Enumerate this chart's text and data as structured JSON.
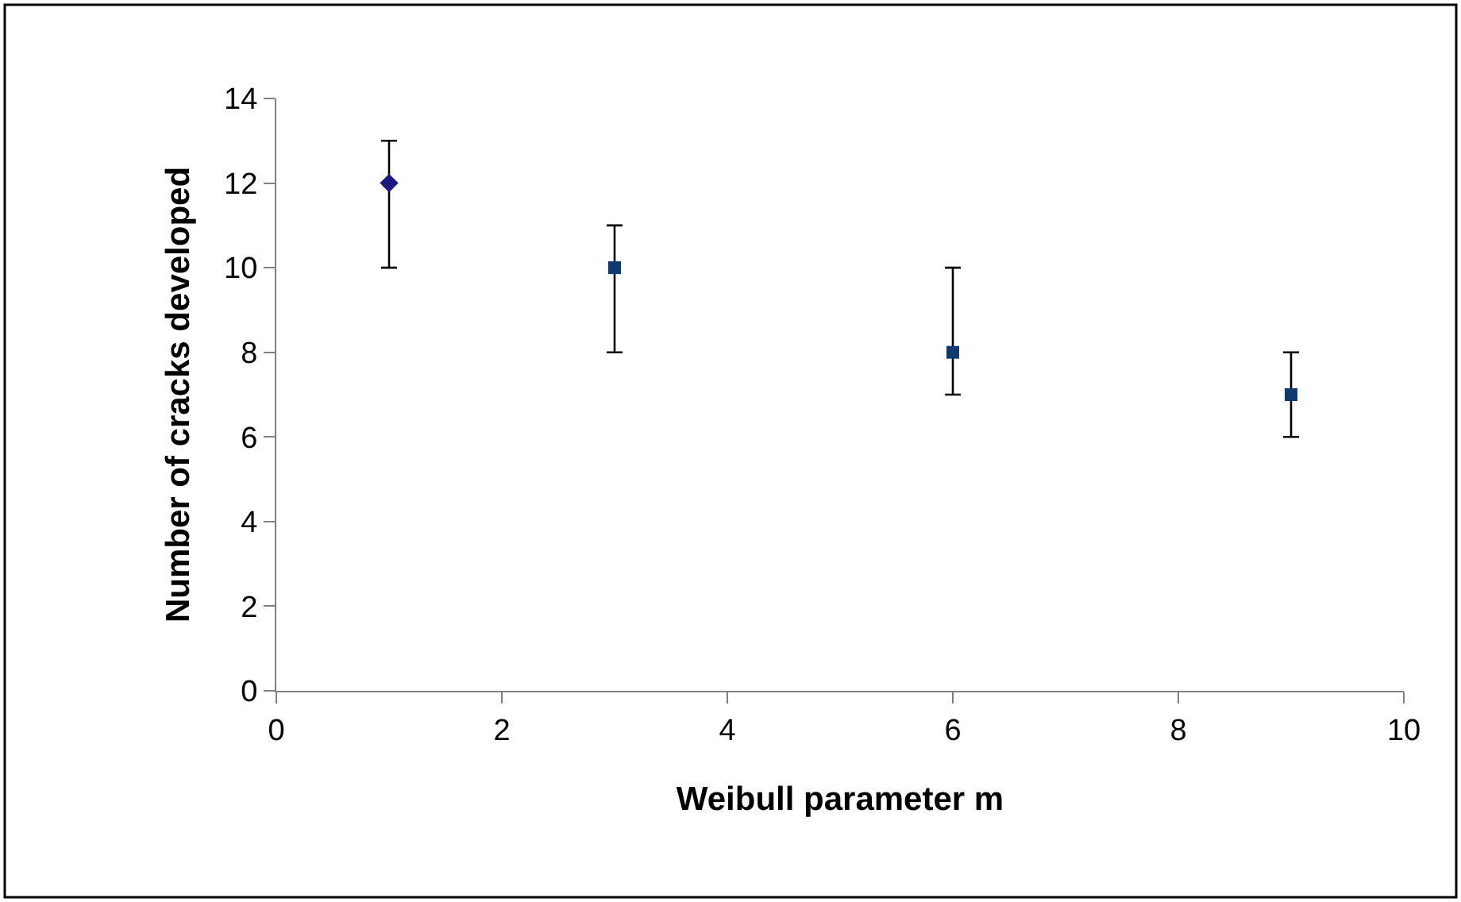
{
  "chart_data": {
    "type": "scatter",
    "xlabel": "Weibull parameter m",
    "ylabel": "Number of cracks developed",
    "series": [
      {
        "x": [
          1
        ],
        "values": [
          12
        ],
        "errors": [
          [
            10,
            13
          ]
        ],
        "color": "#1a1a80",
        "marker": "diamond"
      },
      {
        "x": [
          3,
          6,
          9
        ],
        "values": [
          10,
          8,
          7
        ],
        "errors": [
          [
            8,
            11
          ],
          [
            7,
            10
          ],
          [
            6,
            8
          ]
        ],
        "color": "#0f3a6e",
        "marker": "square"
      }
    ],
    "xlim": [
      0,
      10
    ],
    "xticks": [
      0,
      2,
      4,
      6,
      8,
      10
    ],
    "ylim": [
      0,
      14
    ],
    "yticks": [
      0,
      2,
      4,
      6,
      8,
      10,
      12,
      14
    ],
    "grid": false
  }
}
